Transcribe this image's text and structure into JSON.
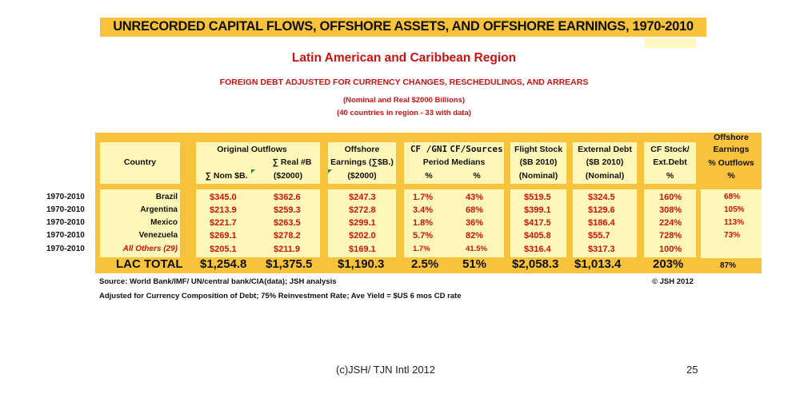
{
  "header": {
    "title": "UNRECORDED CAPITAL FLOWS, OFFSHORE ASSETS, AND OFFSHORE EARNINGS, 1970-2010",
    "region": "Latin American and Caribbean Region",
    "subtitle": "FOREIGN DEBT ADJUSTED FOR CURRENCY CHANGES, RESCHEDULINGS, AND ARREARS",
    "units": "(Nominal and Real $2000 Billions)",
    "coverage": "(40 countries in region - 33 with data)"
  },
  "table": {
    "headers": {
      "country": "Country",
      "orig_outflows": "Original Outflows",
      "real_b": "∑ Real #B",
      "nom_b": "∑ Nom $B.",
      "real_unit": "($2000)",
      "offshore_earn_1": "Offshore",
      "offshore_earn_2": "Earnings (∑$B.)",
      "offshore_earn_3": "($2000)",
      "cf_gni": "CF /GNI",
      "cf_sources": "CF/Sources",
      "period_medians": "Period Medians",
      "pct1": "%",
      "pct2": "%",
      "flight_stock": "Flight Stock",
      "flight_unit": "($B 2010)",
      "flight_nom": "(Nominal)",
      "ext_debt": "External Debt",
      "ext_unit": "($B 2010)",
      "ext_nom": "(Nominal)",
      "cf_stock": "CF Stock/",
      "ext_debt_short": "Ext.Debt",
      "pct3": "%",
      "offshore_earn_out_1": "Offshore",
      "offshore_earn_out_2": "Earnings",
      "offshore_earn_out_3": "% Outflows",
      "pct4": "%"
    },
    "rows": [
      {
        "period": "1970-2010",
        "country": "Brazil",
        "nom": "$345.0",
        "real": "$362.6",
        "earn": "$247.3",
        "cf_gni": "1.7%",
        "cf_src": "43%",
        "flight": "$519.5",
        "ext": "$324.5",
        "cf_stock": "160%",
        "out": "68%"
      },
      {
        "period": "1970-2010",
        "country": "Argentina",
        "nom": "$213.9",
        "real": "$259.3",
        "earn": "$272.8",
        "cf_gni": "3.4%",
        "cf_src": "68%",
        "flight": "$399.1",
        "ext": "$129.6",
        "cf_stock": "308%",
        "out": "105%"
      },
      {
        "period": "1970-2010",
        "country": "Mexico",
        "nom": "$221.7",
        "real": "$263.5",
        "earn": "$299.1",
        "cf_gni": "1.8%",
        "cf_src": "36%",
        "flight": "$417.5",
        "ext": "$186.4",
        "cf_stock": "224%",
        "out": "113%"
      },
      {
        "period": "1970-2010",
        "country": "Venezuela",
        "nom": "$269.1",
        "real": "$278.2",
        "earn": "$202.0",
        "cf_gni": "5.7%",
        "cf_src": "82%",
        "flight": "$405.8",
        "ext": "$55.7",
        "cf_stock": "728%",
        "out": "73%"
      },
      {
        "period": "1970-2010",
        "country": "All Others (29)",
        "nom": "$205.1",
        "real": "$211.9",
        "earn": "$169.1",
        "cf_gni": "1.7%",
        "cf_src": "41.5%",
        "flight": "$316.4",
        "ext": "$317.3",
        "cf_stock": "100%",
        "out": ""
      }
    ],
    "total": {
      "label": "LAC TOTAL",
      "nom": "$1,254.8",
      "real": "$1,375.5",
      "earn": "$1,190.3",
      "cf_gni": "2.5%",
      "cf_src": "51%",
      "flight": "$2,058.3",
      "ext": "$1,013.4",
      "cf_stock": "203%",
      "out": "87%"
    }
  },
  "notes": {
    "source": "Source: World Bank/IMF/ UN/central bank/CIA(data);  JSH analysis",
    "copyright": "© JSH 2012",
    "adjusted": "Adjusted for Currency Composition of Debt; 75% Reinvestment Rate; Ave Yield = $US 6 mos CD rate"
  },
  "footer": {
    "credit": "(c)JSH/ TJN Intl 2012",
    "page": "25"
  },
  "colors": {
    "band": "#f7c23c",
    "cell": "#fff7b8",
    "accent": "#cc1111"
  }
}
